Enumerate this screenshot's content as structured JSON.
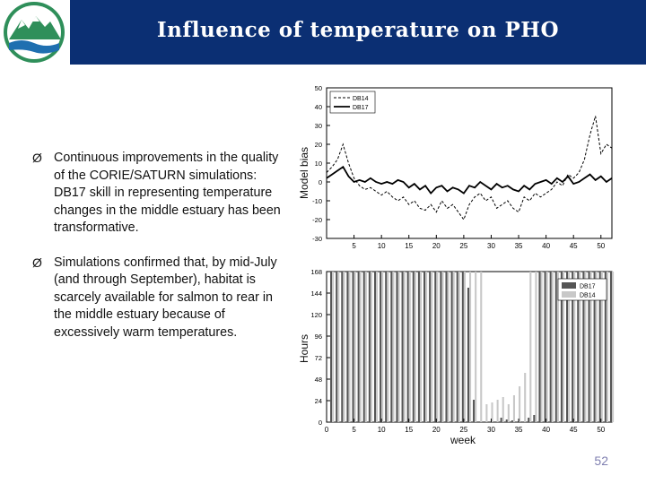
{
  "title": "Influence of temperature on PHO",
  "bullets": [
    "Continuous improvements in the quality of the CORIE/SATURN simulations: DB17 skill in representing temperature changes in the middle estuary has been transformative.",
    "Simulations confirmed that, by mid-July (and through September), habitat is scarcely available for salmon to rear in the middle estuary because of excessively warm temperatures."
  ],
  "bullet_marker": "Ø",
  "page_number": "52",
  "logo_icon": "mountain-river-logo",
  "colors": {
    "header": "#0b2f73",
    "db14_line": "#000000",
    "db17_bar": "#555555",
    "db14_bar": "#c8c8c8"
  },
  "chart_data": [
    {
      "type": "line",
      "xlabel": "",
      "ylabel": "Model bias",
      "xlim": [
        0,
        52
      ],
      "ylim": [
        -30,
        50
      ],
      "xticks": [
        5,
        10,
        15,
        20,
        25,
        30,
        35,
        40,
        45,
        50
      ],
      "yticks": [
        -30,
        -20,
        -10,
        0,
        10,
        20,
        30,
        40,
        50
      ],
      "legend_position": "top-left",
      "series": [
        {
          "name": "DB14",
          "style": "dashed",
          "x": [
            0,
            1,
            2,
            3,
            4,
            5,
            6,
            7,
            8,
            9,
            10,
            11,
            12,
            13,
            14,
            15,
            16,
            17,
            18,
            19,
            20,
            21,
            22,
            23,
            24,
            25,
            26,
            27,
            28,
            29,
            30,
            31,
            32,
            33,
            34,
            35,
            36,
            37,
            38,
            39,
            40,
            41,
            42,
            43,
            44,
            45,
            46,
            47,
            48,
            49,
            50,
            51,
            52
          ],
          "y": [
            5,
            8,
            12,
            20,
            10,
            2,
            -2,
            -4,
            -3,
            -5,
            -7,
            -5,
            -8,
            -10,
            -8,
            -12,
            -10,
            -14,
            -15,
            -12,
            -16,
            -10,
            -14,
            -12,
            -16,
            -20,
            -12,
            -8,
            -6,
            -10,
            -8,
            -14,
            -12,
            -10,
            -14,
            -16,
            -8,
            -10,
            -6,
            -8,
            -6,
            -4,
            0,
            -2,
            4,
            2,
            5,
            12,
            25,
            35,
            15,
            20,
            18
          ]
        },
        {
          "name": "DB17",
          "style": "solid",
          "x": [
            0,
            1,
            2,
            3,
            4,
            5,
            6,
            7,
            8,
            9,
            10,
            11,
            12,
            13,
            14,
            15,
            16,
            17,
            18,
            19,
            20,
            21,
            22,
            23,
            24,
            25,
            26,
            27,
            28,
            29,
            30,
            31,
            32,
            33,
            34,
            35,
            36,
            37,
            38,
            39,
            40,
            41,
            42,
            43,
            44,
            45,
            46,
            47,
            48,
            49,
            50,
            51,
            52
          ],
          "y": [
            2,
            4,
            6,
            8,
            3,
            0,
            1,
            0,
            2,
            0,
            -1,
            0,
            -1,
            1,
            0,
            -3,
            -1,
            -4,
            -2,
            -6,
            -3,
            -2,
            -5,
            -3,
            -4,
            -6,
            -2,
            -3,
            0,
            -2,
            -4,
            -1,
            -3,
            -2,
            -4,
            -5,
            -2,
            -4,
            -1,
            0,
            1,
            -1,
            2,
            0,
            3,
            -1,
            0,
            2,
            4,
            1,
            3,
            0,
            2
          ]
        }
      ]
    },
    {
      "type": "bar",
      "xlabel": "week",
      "ylabel": "Hours",
      "xlim": [
        0,
        52
      ],
      "ylim": [
        0,
        168
      ],
      "xticks": [
        0,
        5,
        10,
        15,
        20,
        25,
        30,
        35,
        40,
        45,
        50
      ],
      "yticks": [
        0,
        24,
        48,
        72,
        96,
        120,
        144,
        168
      ],
      "legend_position": "top-right",
      "series": [
        {
          "name": "DB17",
          "values": [
            168,
            168,
            168,
            168,
            168,
            168,
            168,
            168,
            168,
            168,
            168,
            168,
            168,
            168,
            168,
            168,
            168,
            168,
            168,
            168,
            168,
            168,
            168,
            168,
            168,
            150,
            25,
            0,
            0,
            0,
            0,
            5,
            3,
            2,
            0,
            0,
            5,
            8,
            168,
            168,
            168,
            168,
            168,
            168,
            168,
            168,
            168,
            168,
            168,
            168,
            168,
            168
          ]
        },
        {
          "name": "DB14",
          "values": [
            168,
            168,
            168,
            168,
            168,
            168,
            168,
            168,
            168,
            168,
            168,
            168,
            168,
            168,
            168,
            168,
            168,
            168,
            168,
            168,
            168,
            168,
            168,
            168,
            168,
            168,
            168,
            168,
            20,
            22,
            25,
            28,
            20,
            30,
            40,
            55,
            168,
            168,
            168,
            168,
            168,
            168,
            168,
            168,
            168,
            168,
            168,
            168,
            168,
            168,
            168,
            168
          ]
        }
      ]
    }
  ]
}
